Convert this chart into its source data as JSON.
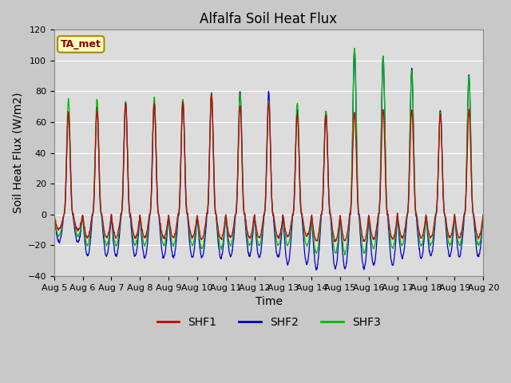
{
  "title": "Alfalfa Soil Heat Flux",
  "xlabel": "Time",
  "ylabel": "Soil Heat Flux (W/m2)",
  "ylim": [
    -40,
    120
  ],
  "yticks": [
    -40,
    -20,
    0,
    20,
    40,
    60,
    80,
    100,
    120
  ],
  "date_labels": [
    "Aug 5",
    "Aug 6",
    "Aug 7",
    "Aug 8",
    "Aug 9",
    "Aug 10",
    "Aug 11",
    "Aug 12",
    "Aug 13",
    "Aug 14",
    "Aug 15",
    "Aug 16",
    "Aug 17",
    "Aug 18",
    "Aug 19",
    "Aug 20"
  ],
  "legend_label": "TA_met",
  "series_names": [
    "SHF1",
    "SHF2",
    "SHF3"
  ],
  "series_colors": [
    "#cc0000",
    "#0000cc",
    "#00bb00"
  ],
  "fig_facecolor": "#c8c8c8",
  "axes_facecolor": "#dcdcdc",
  "title_fontsize": 12,
  "axis_fontsize": 10,
  "tick_fontsize": 8,
  "legend_fontsize": 10,
  "n_days": 15,
  "pts_per_day": 96,
  "shf2_day_peaks": [
    67,
    70,
    73,
    73,
    74,
    79,
    80,
    80,
    68,
    67,
    108,
    103,
    95,
    68,
    90
  ],
  "shf2_night_mins": [
    -18,
    -27,
    -27,
    -28,
    -28,
    -28,
    -27,
    -28,
    -32,
    -35,
    -35,
    -33,
    -28,
    -27,
    -27
  ],
  "shf3_day_peaks": [
    75,
    75,
    73,
    76,
    75,
    79,
    79,
    74,
    73,
    67,
    108,
    102,
    94,
    67,
    90
  ],
  "shf3_night_mins": [
    -14,
    -20,
    -20,
    -20,
    -20,
    -22,
    -20,
    -20,
    -20,
    -25,
    -25,
    -22,
    -20,
    -20,
    -20
  ],
  "shf1_day_peaks": [
    66,
    67,
    72,
    72,
    73,
    78,
    71,
    72,
    65,
    65,
    67,
    68,
    68,
    65,
    68
  ],
  "shf1_night_mins": [
    -10,
    -15,
    -15,
    -15,
    -15,
    -16,
    -15,
    -15,
    -14,
    -17,
    -17,
    -16,
    -15,
    -15,
    -15
  ]
}
